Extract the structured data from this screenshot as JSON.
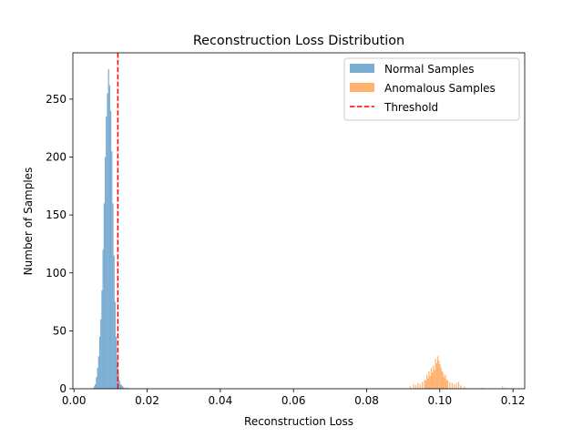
{
  "chart_data": {
    "type": "histogram",
    "title": "Reconstruction Loss Distribution",
    "xlabel": "Reconstruction Loss",
    "ylabel": "Number of Samples",
    "xlim": [
      -0.0003,
      0.1232
    ],
    "ylim": [
      0,
      290
    ],
    "xticks": [
      0.0,
      0.02,
      0.04,
      0.06,
      0.08,
      0.1,
      0.12
    ],
    "xtick_labels": [
      "0.00",
      "0.02",
      "0.04",
      "0.06",
      "0.08",
      "0.10",
      "0.12"
    ],
    "yticks": [
      0,
      50,
      100,
      150,
      200,
      250
    ],
    "ytick_labels": [
      "0",
      "50",
      "100",
      "150",
      "200",
      "250"
    ],
    "grid": false,
    "legend_position": "top-right",
    "series": [
      {
        "name": "Normal Samples",
        "color": "#1f77b4",
        "alpha": 0.6,
        "bin_width": 0.0003,
        "bins": [
          [
            0.0054,
            2
          ],
          [
            0.0057,
            4
          ],
          [
            0.006,
            10
          ],
          [
            0.0063,
            18
          ],
          [
            0.0066,
            28
          ],
          [
            0.0069,
            45
          ],
          [
            0.0072,
            60
          ],
          [
            0.0075,
            85
          ],
          [
            0.0078,
            120
          ],
          [
            0.0081,
            160
          ],
          [
            0.0084,
            200
          ],
          [
            0.0087,
            235
          ],
          [
            0.009,
            255
          ],
          [
            0.0093,
            276
          ],
          [
            0.0096,
            262
          ],
          [
            0.0099,
            240
          ],
          [
            0.0102,
            205
          ],
          [
            0.0105,
            160
          ],
          [
            0.0108,
            115
          ],
          [
            0.0111,
            75
          ],
          [
            0.0114,
            45
          ],
          [
            0.0117,
            25
          ],
          [
            0.012,
            13
          ],
          [
            0.0123,
            7
          ],
          [
            0.0126,
            4
          ],
          [
            0.0129,
            3
          ],
          [
            0.0132,
            2
          ],
          [
            0.0135,
            1
          ],
          [
            0.0141,
            1
          ],
          [
            0.0147,
            1
          ]
        ]
      },
      {
        "name": "Anomalous Samples",
        "color": "#ff7f0e",
        "alpha": 0.6,
        "bin_width": 0.0003,
        "bins": [
          [
            0.0918,
            2
          ],
          [
            0.0927,
            4
          ],
          [
            0.0933,
            3
          ],
          [
            0.0939,
            5
          ],
          [
            0.0945,
            4
          ],
          [
            0.0951,
            6
          ],
          [
            0.0957,
            8
          ],
          [
            0.096,
            7
          ],
          [
            0.0963,
            12
          ],
          [
            0.0966,
            9
          ],
          [
            0.0969,
            15
          ],
          [
            0.0972,
            11
          ],
          [
            0.0975,
            18
          ],
          [
            0.0978,
            14
          ],
          [
            0.0981,
            20
          ],
          [
            0.0984,
            16
          ],
          [
            0.0987,
            26
          ],
          [
            0.099,
            22
          ],
          [
            0.0993,
            28
          ],
          [
            0.0996,
            24
          ],
          [
            0.0999,
            21
          ],
          [
            0.1002,
            18
          ],
          [
            0.1005,
            15
          ],
          [
            0.1008,
            13
          ],
          [
            0.1011,
            10
          ],
          [
            0.1014,
            12
          ],
          [
            0.1017,
            8
          ],
          [
            0.102,
            7
          ],
          [
            0.1026,
            6
          ],
          [
            0.1032,
            5
          ],
          [
            0.1038,
            4
          ],
          [
            0.1044,
            5
          ],
          [
            0.105,
            6
          ],
          [
            0.1056,
            3
          ],
          [
            0.1065,
            2
          ],
          [
            0.1071,
            1
          ],
          [
            0.1116,
            1
          ],
          [
            0.117,
            2
          ],
          [
            0.1179,
            1
          ]
        ]
      }
    ],
    "threshold": {
      "name": "Threshold",
      "x": 0.012,
      "color": "#ff0000",
      "style": "dashed"
    }
  }
}
